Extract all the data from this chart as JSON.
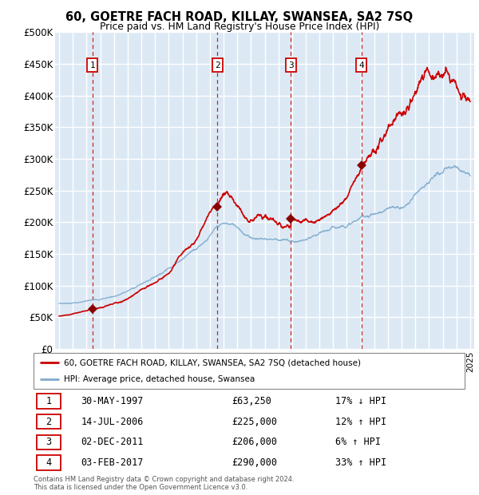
{
  "title": "60, GOETRE FACH ROAD, KILLAY, SWANSEA, SA2 7SQ",
  "subtitle": "Price paid vs. HM Land Registry's House Price Index (HPI)",
  "legend_label_red": "60, GOETRE FACH ROAD, KILLAY, SWANSEA, SA2 7SQ (detached house)",
  "legend_label_blue": "HPI: Average price, detached house, Swansea",
  "footer_line1": "Contains HM Land Registry data © Crown copyright and database right 2024.",
  "footer_line2": "This data is licensed under the Open Government Licence v3.0.",
  "transactions": [
    {
      "num": 1,
      "date": "30-MAY-1997",
      "price": 63250,
      "pct": "17%",
      "dir": "↓",
      "year_x": 1997.42
    },
    {
      "num": 2,
      "date": "14-JUL-2006",
      "price": 225000,
      "pct": "12%",
      "dir": "↑",
      "year_x": 2006.54
    },
    {
      "num": 3,
      "date": "02-DEC-2011",
      "price": 206000,
      "pct": "6%",
      "dir": "↑",
      "year_x": 2011.92
    },
    {
      "num": 4,
      "date": "03-FEB-2017",
      "price": 290000,
      "pct": "33%",
      "dir": "↑",
      "year_x": 2017.08
    }
  ],
  "ylim": [
    0,
    500000
  ],
  "yticks": [
    0,
    50000,
    100000,
    150000,
    200000,
    250000,
    300000,
    350000,
    400000,
    450000,
    500000
  ],
  "ytick_labels": [
    "£0",
    "£50K",
    "£100K",
    "£150K",
    "£200K",
    "£250K",
    "£300K",
    "£350K",
    "£400K",
    "£450K",
    "£500K"
  ],
  "xlim_start": 1994.7,
  "xlim_end": 2025.3,
  "plot_bg_color": "#dce9f5",
  "red_color": "#cc0000",
  "blue_color": "#7faacc",
  "grid_color": "#ffffff",
  "sale_marker_color": "#880000"
}
